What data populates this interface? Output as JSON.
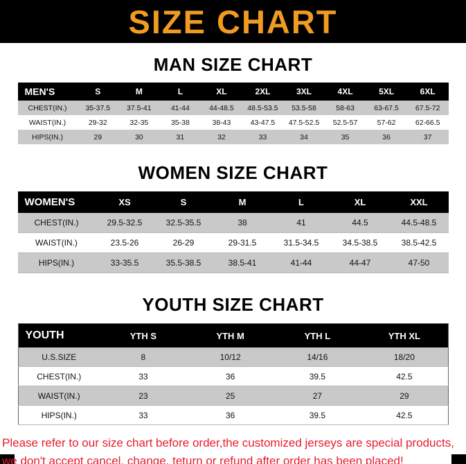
{
  "banner": {
    "title": "SIZE CHART"
  },
  "colors": {
    "banner_bg": "#000000",
    "title_orange": "#F09B21",
    "table_header_bg": "#000000",
    "table_header_text": "#FFFFFF",
    "row_gray": "#C9C9C9",
    "disclaimer_red": "#E81B2C"
  },
  "sections": [
    {
      "heading": "MAN SIZE CHART",
      "table": {
        "header": [
          "MEN'S",
          "S",
          "M",
          "L",
          "XL",
          "2XL",
          "3XL",
          "4XL",
          "5XL",
          "6XL"
        ],
        "rows": [
          [
            "CHEST(IN.)",
            "35-37.5",
            "37.5-41",
            "41-44",
            "44-48.5",
            "48.5-53.5",
            "53.5-58",
            "58-63",
            "63-67.5",
            "67.5-72"
          ],
          [
            "WAIST(IN.)",
            "29-32",
            "32-35",
            "35-38",
            "38-43",
            "43-47.5",
            "47.5-52.5",
            "52.5-57",
            "57-62",
            "62-66.5"
          ],
          [
            "HIPS(IN.)",
            "29",
            "30",
            "31",
            "32",
            "33",
            "34",
            "35",
            "36",
            "37"
          ]
        ]
      }
    },
    {
      "heading": "WOMEN SIZE CHART",
      "table": {
        "header": [
          "WOMEN'S",
          "XS",
          "S",
          "M",
          "L",
          "XL",
          "XXL"
        ],
        "rows": [
          [
            "CHEST(IN.)",
            "29.5-32.5",
            "32.5-35.5",
            "38",
            "41",
            "44.5",
            "44.5-48.5"
          ],
          [
            "WAIST(IN.)",
            "23.5-26",
            "26-29",
            "29-31.5",
            "31.5-34.5",
            "34.5-38.5",
            "38.5-42.5"
          ],
          [
            "HIPS(IN.)",
            "33-35.5",
            "35.5-38.5",
            "38.5-41",
            "41-44",
            "44-47",
            "47-50"
          ]
        ]
      }
    },
    {
      "heading": "YOUTH SIZE CHART",
      "table": {
        "header": [
          "YOUTH",
          "YTH S",
          "YTH M",
          "YTH L",
          "YTH XL"
        ],
        "rows": [
          [
            "U.S.SIZE",
            "8",
            "10/12",
            "14/16",
            "18/20"
          ],
          [
            "CHEST(IN.)",
            "33",
            "36",
            "39.5",
            "42.5"
          ],
          [
            "WAIST(IN.)",
            "23",
            "25",
            "27",
            "29"
          ],
          [
            "HIPS(IN.)",
            "33",
            "36",
            "39.5",
            "42.5"
          ]
        ]
      }
    }
  ],
  "disclaimer": {
    "line1": "Please refer to our size chart before order,the customized jerseys are special products,",
    "line2": "we don't accept cancel, change, teturn or refund after order has been placed!"
  }
}
